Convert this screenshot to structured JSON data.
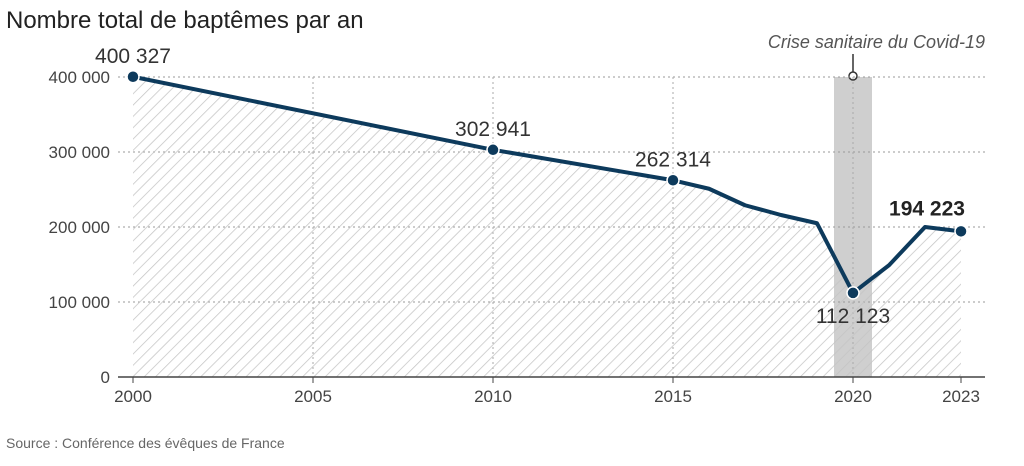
{
  "chart_data": {
    "type": "area",
    "title": "Nombre total de baptêmes par an",
    "source": "Source : Conférence des évêques de France",
    "xlabel": "",
    "ylabel": "",
    "x": [
      2000,
      2010,
      2015,
      2016,
      2017,
      2018,
      2019,
      2020,
      2021,
      2022,
      2023
    ],
    "values": [
      400327,
      302941,
      262314,
      251000,
      229000,
      216000,
      205000,
      112123,
      149000,
      200000,
      194223
    ],
    "xlim": [
      2000,
      2023
    ],
    "ylim": [
      0,
      400000
    ],
    "x_ticks": [
      "2000",
      "2005",
      "2010",
      "2015",
      "2020",
      "2023"
    ],
    "y_ticks": [
      "0",
      "100 000",
      "200 000",
      "300 000",
      "400 000"
    ],
    "data_labels": [
      {
        "year": 2000,
        "text": "400 327",
        "bold": false
      },
      {
        "year": 2010,
        "text": "302 941",
        "bold": false
      },
      {
        "year": 2015,
        "text": "262 314",
        "bold": false
      },
      {
        "year": 2020,
        "text": "112 123",
        "bold": false
      },
      {
        "year": 2023,
        "text": "194 223",
        "bold": true
      }
    ],
    "annotation": {
      "text": "Crise sanitaire du Covid-19",
      "year_from": 2019.5,
      "year_to": 2020.5
    },
    "grid": true,
    "colors": {
      "line": "#0d3a5c",
      "band": "#cfcfcf",
      "hatch": "#bdbdbd"
    }
  }
}
